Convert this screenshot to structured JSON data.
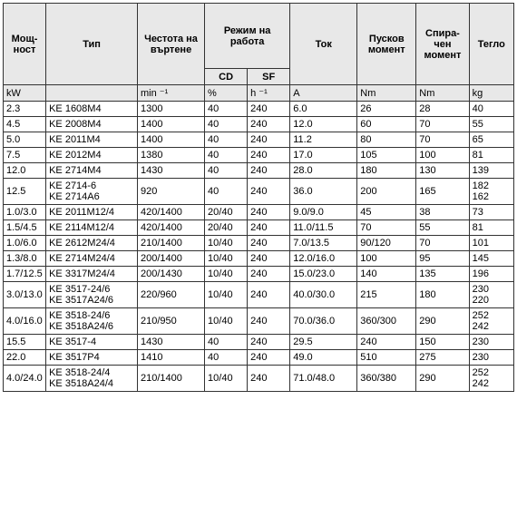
{
  "type": "table",
  "headers": {
    "power": "Мощ-\nност",
    "type": "Тип",
    "freq": "Честота на\nвъртене",
    "mode": "Режим на\nработа",
    "cd": "CD",
    "sf": "SF",
    "current": "Ток",
    "start": "Пусков\nмомент",
    "brake": "Спира-\nчен\nмомент",
    "weight": "Тегло"
  },
  "units": {
    "power": "kW",
    "type": "",
    "freq": "min ⁻¹",
    "cd": "%",
    "sf": "h ⁻¹",
    "current": "A",
    "start": "Nm",
    "brake": "Nm",
    "weight": "kg"
  },
  "rows": [
    {
      "power": "2.3",
      "type": "KE 1608M4",
      "freq": "1300",
      "cd": "40",
      "sf": "240",
      "cur": "6.0",
      "start": "26",
      "brake": "28",
      "weight": "40"
    },
    {
      "power": "4.5",
      "type": "KE 2008M4",
      "freq": "1400",
      "cd": "40",
      "sf": "240",
      "cur": "12.0",
      "start": "60",
      "brake": "70",
      "weight": "55"
    },
    {
      "power": "5.0",
      "type": "KE 2011M4",
      "freq": "1400",
      "cd": "40",
      "sf": "240",
      "cur": "11.2",
      "start": "80",
      "brake": "70",
      "weight": "65"
    },
    {
      "power": "7.5",
      "type": "KE 2012M4",
      "freq": "1380",
      "cd": "40",
      "sf": "240",
      "cur": "17.0",
      "start": "105",
      "brake": "100",
      "weight": "81"
    },
    {
      "power": "12.0",
      "type": "KE 2714M4",
      "freq": "1430",
      "cd": "40",
      "sf": "240",
      "cur": "28.0",
      "start": "180",
      "brake": "130",
      "weight": "139"
    },
    {
      "power": "12.5",
      "type": "KE 2714-6\nKE 2714A6",
      "freq": "920",
      "cd": "40",
      "sf": "240",
      "cur": "36.0",
      "start": "200",
      "brake": "165",
      "weight": "182\n162"
    },
    {
      "power": "1.0/3.0",
      "type": "KE 2011M12/4",
      "freq": "420/1400",
      "cd": "20/40",
      "sf": "240",
      "cur": "9.0/9.0",
      "start": "45",
      "brake": "38",
      "weight": "73"
    },
    {
      "power": "1.5/4.5",
      "type": "KE 2114M12/4",
      "freq": "420/1400",
      "cd": "20/40",
      "sf": "240",
      "cur": "11.0/11.5",
      "start": "70",
      "brake": "55",
      "weight": "81"
    },
    {
      "power": "1.0/6.0",
      "type": "KE 2612M24/4",
      "freq": "210/1400",
      "cd": "10/40",
      "sf": "240",
      "cur": "7.0/13.5",
      "start": "90/120",
      "brake": "70",
      "weight": "101"
    },
    {
      "power": "1.3/8.0",
      "type": "KE 2714M24/4",
      "freq": "200/1400",
      "cd": "10/40",
      "sf": "240",
      "cur": "12.0/16.0",
      "start": "100",
      "brake": "95",
      "weight": "145"
    },
    {
      "power": "1.7/12.5",
      "type": "KE 3317M24/4",
      "freq": "200/1430",
      "cd": "10/40",
      "sf": "240",
      "cur": "15.0/23.0",
      "start": "140",
      "brake": "135",
      "weight": "196"
    },
    {
      "power": "3.0/13.0",
      "type": "KE 3517-24/6\nKE 3517A24/6",
      "freq": "220/960",
      "cd": "10/40",
      "sf": "240",
      "cur": "40.0/30.0",
      "start": "215",
      "brake": "180",
      "weight": "230\n220"
    },
    {
      "power": "4.0/16.0",
      "type": "KE 3518-24/6\nKE 3518A24/6",
      "freq": "210/950",
      "cd": "10/40",
      "sf": "240",
      "cur": "70.0/36.0",
      "start": "360/300",
      "brake": "290",
      "weight": "252\n242"
    },
    {
      "power": "15.5",
      "type": "KE 3517-4",
      "freq": "1430",
      "cd": "40",
      "sf": "240",
      "cur": "29.5",
      "start": "240",
      "brake": "150",
      "weight": "230"
    },
    {
      "power": "22.0",
      "type": "KE 3517P4",
      "freq": "1410",
      "cd": "40",
      "sf": "240",
      "cur": "49.0",
      "start": "510",
      "brake": "275",
      "weight": "230"
    },
    {
      "power": "4.0/24.0",
      "type": "KE 3518-24/4\nKE 3518A24/4",
      "freq": "210/1400",
      "cd": "10/40",
      "sf": "240",
      "cur": "71.0/48.0",
      "start": "360/380",
      "brake": "290",
      "weight": "252\n242"
    }
  ],
  "colors": {
    "header_bg": "#e8e8e8",
    "border": "#333333",
    "text": "#000000"
  },
  "font": {
    "family": "Arial",
    "size_pt": 8
  }
}
